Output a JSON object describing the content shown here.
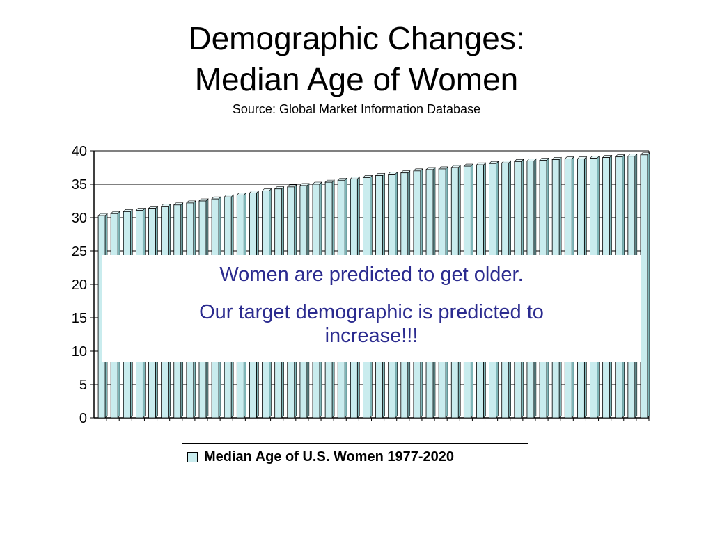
{
  "slide": {
    "title_line1": "Demographic Changes:",
    "title_line2": "Median Age of Women",
    "subtitle": "Source: Global Market Information Database",
    "callout_line1": "Women are predicted to get older.",
    "callout_line2": "Our target demographic is predicted to increase!!!"
  },
  "colors": {
    "bar_fill": "#c9ecee",
    "bar_edge": "#000000",
    "callout_text": "#2b2b8f"
  },
  "chart_data": {
    "type": "bar",
    "title": "",
    "xlabel": "",
    "ylabel": "",
    "ylim": [
      0,
      40
    ],
    "y_ticks": [
      0,
      5,
      10,
      15,
      20,
      25,
      30,
      35,
      40
    ],
    "grid": true,
    "legend_position": "bottom",
    "series": [
      {
        "name": "Median Age of U.S. Women 1977-2020",
        "values": [
          30.3,
          30.6,
          30.9,
          31.1,
          31.4,
          31.7,
          31.9,
          32.2,
          32.5,
          32.8,
          33.1,
          33.4,
          33.7,
          34.0,
          34.3,
          34.6,
          34.8,
          35.0,
          35.3,
          35.6,
          35.8,
          36.0,
          36.3,
          36.5,
          36.7,
          37.0,
          37.2,
          37.3,
          37.5,
          37.7,
          37.9,
          38.1,
          38.2,
          38.4,
          38.5,
          38.6,
          38.7,
          38.8,
          38.8,
          38.9,
          39.0,
          39.1,
          39.2,
          39.4
        ]
      }
    ]
  }
}
